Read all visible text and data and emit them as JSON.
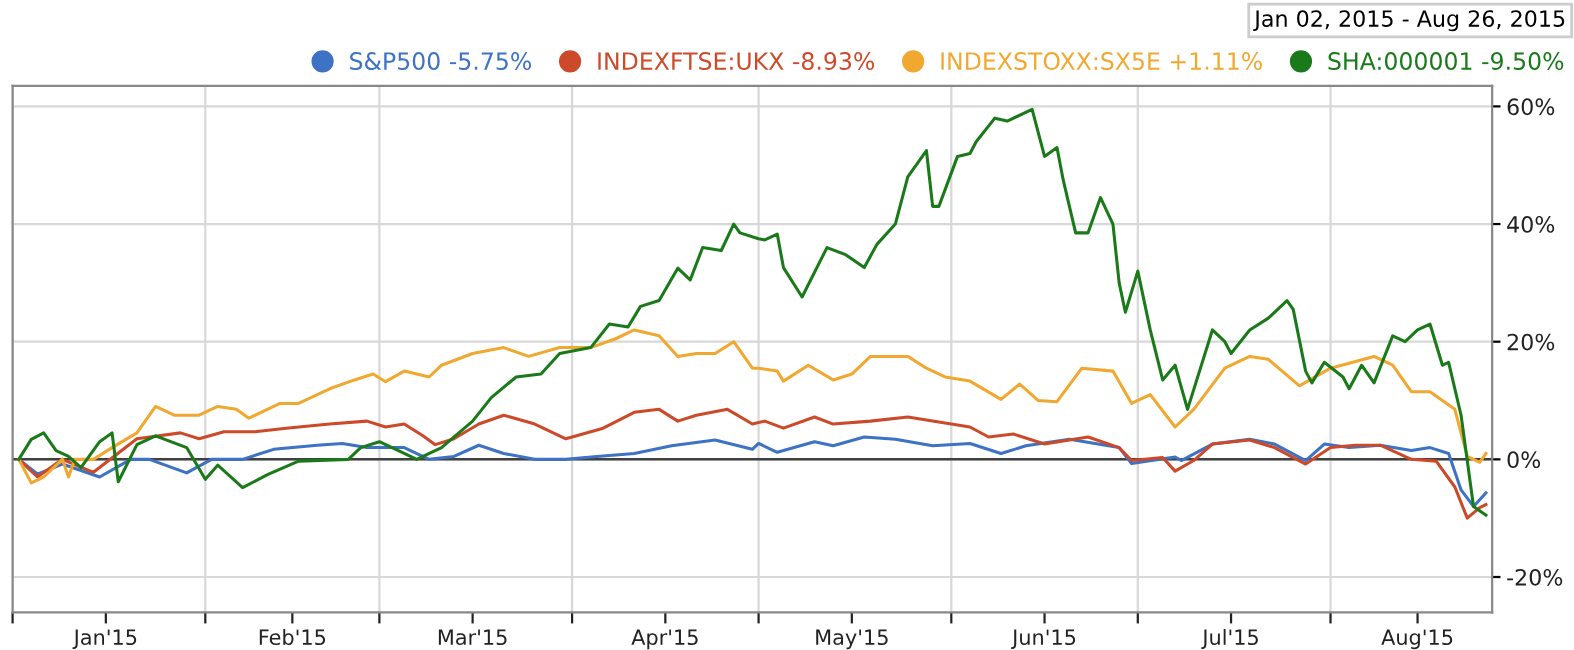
{
  "chart_data": {
    "type": "line",
    "annotations": [
      "Jan 02, 2015 - Aug 26, 2015"
    ],
    "legend": "top right",
    "grid": true,
    "marker": "none",
    "line_style": "solid",
    "xlim": [
      "2015-01-01",
      "2015-08-27"
    ],
    "xticks": [
      {
        "value": "2015-01-01",
        "label": null
      },
      {
        "value": "2015-01-16",
        "label": "Jan'15"
      },
      {
        "value": "2015-02-01",
        "label": null
      },
      {
        "value": "2015-02-15",
        "label": "Feb'15"
      },
      {
        "value": "2015-03-01",
        "label": null
      },
      {
        "value": "2015-03-16",
        "label": "Mar'15"
      },
      {
        "value": "2015-04-01",
        "label": null
      },
      {
        "value": "2015-04-16",
        "label": "Apr'15"
      },
      {
        "value": "2015-05-01",
        "label": null
      },
      {
        "value": "2015-05-16",
        "label": "May'15"
      },
      {
        "value": "2015-06-01",
        "label": null
      },
      {
        "value": "2015-06-16",
        "label": "Jun'15"
      },
      {
        "value": "2015-07-01",
        "label": null
      },
      {
        "value": "2015-07-16",
        "label": "Jul'15"
      },
      {
        "value": "2015-08-01",
        "label": null
      },
      {
        "value": "2015-08-15",
        "label": "Aug'15"
      }
    ],
    "ylim": [
      -26,
      63.5
    ],
    "yticks": [
      {
        "value": -20,
        "label": "-20%"
      },
      {
        "value": 0,
        "label": "0%"
      },
      {
        "value": 20,
        "label": "20%"
      },
      {
        "value": 40,
        "label": "40%"
      },
      {
        "value": 60,
        "label": "60%"
      }
    ],
    "ref_lines": [
      {
        "axis": "y",
        "value": 0,
        "color": "#404040"
      }
    ],
    "series": [
      {
        "name": "S&P500 -5.75%",
        "color": "#3d72c4",
        "x": [
          "2015-01-02",
          "2015-01-05",
          "2015-01-09",
          "2015-01-15",
          "2015-01-20",
          "2015-01-23",
          "2015-01-29",
          "2015-02-02",
          "2015-02-07",
          "2015-02-12",
          "2015-02-19",
          "2015-02-23",
          "2015-02-27",
          "2015-03-05",
          "2015-03-09",
          "2015-03-13",
          "2015-03-17",
          "2015-03-21",
          "2015-03-26",
          "2015-03-31",
          "2015-04-05",
          "2015-04-11",
          "2015-04-17",
          "2015-04-24",
          "2015-04-30",
          "2015-05-01",
          "2015-05-04",
          "2015-05-10",
          "2015-05-13",
          "2015-05-18",
          "2015-05-23",
          "2015-05-29",
          "2015-06-04",
          "2015-06-09",
          "2015-06-13",
          "2015-06-20",
          "2015-06-28",
          "2015-06-30",
          "2015-07-07",
          "2015-07-08",
          "2015-07-13",
          "2015-07-19",
          "2015-07-23",
          "2015-07-28",
          "2015-07-31",
          "2015-08-04",
          "2015-08-09",
          "2015-08-14",
          "2015-08-17",
          "2015-08-20",
          "2015-08-22",
          "2015-08-24",
          "2015-08-26"
        ],
        "values": [
          0,
          -2.5,
          -0.8,
          -3,
          0,
          0,
          -2.3,
          0,
          0,
          1.7,
          2.4,
          2.7,
          2,
          2,
          0,
          0.5,
          2.4,
          1,
          0,
          0,
          0.5,
          1,
          2.3,
          3.3,
          1.7,
          2.7,
          1.2,
          3,
          2.3,
          3.8,
          3.4,
          2.3,
          2.7,
          1,
          2.3,
          3.4,
          2,
          -0.7,
          0.4,
          -0.2,
          2.6,
          3.4,
          2.6,
          -0.2,
          2.6,
          2,
          2.4,
          1.5,
          2,
          1,
          -5.2,
          -8,
          -5.7
        ]
      },
      {
        "name": "INDEXFTSE:UKX -8.93%",
        "color": "#cc4a2a",
        "x": [
          "2015-01-02",
          "2015-01-05",
          "2015-01-09",
          "2015-01-14",
          "2015-01-21",
          "2015-01-28",
          "2015-01-31",
          "2015-02-04",
          "2015-02-09",
          "2015-02-14",
          "2015-02-21",
          "2015-02-27",
          "2015-03-02",
          "2015-03-05",
          "2015-03-08",
          "2015-03-10",
          "2015-03-13",
          "2015-03-17",
          "2015-03-21",
          "2015-03-26",
          "2015-03-31",
          "2015-04-06",
          "2015-04-11",
          "2015-04-15",
          "2015-04-18",
          "2015-04-21",
          "2015-04-26",
          "2015-04-30",
          "2015-05-02",
          "2015-05-05",
          "2015-05-10",
          "2015-05-13",
          "2015-05-19",
          "2015-05-25",
          "2015-05-29",
          "2015-06-04",
          "2015-06-07",
          "2015-06-11",
          "2015-06-16",
          "2015-06-23",
          "2015-06-28",
          "2015-06-30",
          "2015-07-05",
          "2015-07-07",
          "2015-07-10",
          "2015-07-13",
          "2015-07-19",
          "2015-07-23",
          "2015-07-28",
          "2015-08-01",
          "2015-08-05",
          "2015-08-09",
          "2015-08-14",
          "2015-08-18",
          "2015-08-21",
          "2015-08-23",
          "2015-08-25",
          "2015-08-26"
        ],
        "values": [
          0,
          -3,
          0,
          -2.2,
          3.5,
          4.5,
          3.5,
          4.7,
          4.7,
          5.3,
          6,
          6.5,
          5.5,
          6,
          4,
          2.5,
          3.5,
          6,
          7.5,
          6,
          3.5,
          5.3,
          8,
          8.5,
          6.5,
          7.5,
          8.5,
          6,
          6.5,
          5.3,
          7.2,
          6,
          6.5,
          7.2,
          6.5,
          5.5,
          3.8,
          4.3,
          2.6,
          3.8,
          2,
          -0.2,
          0.3,
          -2,
          -0.2,
          2.6,
          3.3,
          2,
          -0.8,
          2,
          2.4,
          2.4,
          0,
          -0.3,
          -4.7,
          -10,
          -8.2,
          -7.7
        ]
      },
      {
        "name": "INDEXSTOXX:SX5E +1.11%",
        "color": "#f0a830",
        "x": [
          "2015-01-02",
          "2015-01-04",
          "2015-01-06",
          "2015-01-09",
          "2015-01-10",
          "2015-01-11",
          "2015-01-14",
          "2015-01-17",
          "2015-01-21",
          "2015-01-24",
          "2015-01-27",
          "2015-01-31",
          "2015-02-03",
          "2015-02-06",
          "2015-02-08",
          "2015-02-13",
          "2015-02-16",
          "2015-02-21",
          "2015-02-25",
          "2015-02-28",
          "2015-03-02",
          "2015-03-05",
          "2015-03-09",
          "2015-03-11",
          "2015-03-16",
          "2015-03-21",
          "2015-03-25",
          "2015-03-30",
          "2015-04-04",
          "2015-04-08",
          "2015-04-11",
          "2015-04-15",
          "2015-04-18",
          "2015-04-21",
          "2015-04-24",
          "2015-04-27",
          "2015-04-30",
          "2015-05-01",
          "2015-05-04",
          "2015-05-05",
          "2015-05-09",
          "2015-05-13",
          "2015-05-16",
          "2015-05-19",
          "2015-05-25",
          "2015-05-28",
          "2015-05-31",
          "2015-06-04",
          "2015-06-09",
          "2015-06-12",
          "2015-06-15",
          "2015-06-18",
          "2015-06-22",
          "2015-06-27",
          "2015-06-30",
          "2015-07-03",
          "2015-07-07",
          "2015-07-10",
          "2015-07-15",
          "2015-07-19",
          "2015-07-22",
          "2015-07-27",
          "2015-08-01",
          "2015-08-08",
          "2015-08-11",
          "2015-08-14",
          "2015-08-17",
          "2015-08-21",
          "2015-08-23",
          "2015-08-25",
          "2015-08-26"
        ],
        "values": [
          0,
          -4,
          -3,
          0,
          -3,
          0,
          0,
          2,
          4.5,
          9,
          7.5,
          7.5,
          9,
          8.5,
          7,
          9.5,
          9.5,
          12,
          13.5,
          14.5,
          13.2,
          15,
          14,
          16,
          18,
          19,
          17.5,
          19,
          19,
          20.5,
          22,
          21,
          17.5,
          18,
          18,
          20,
          15.5,
          15.5,
          15,
          13.3,
          16,
          13.5,
          14.5,
          17.5,
          17.5,
          15.5,
          14,
          13.3,
          10.2,
          12.8,
          10,
          9.8,
          15.5,
          15,
          9.5,
          11,
          5.5,
          8.5,
          15.5,
          17.5,
          17,
          12.5,
          15.5,
          17.5,
          16,
          11.5,
          11.5,
          8.5,
          0.5,
          -0.5,
          1
        ]
      },
      {
        "name": "SHA:000001 -9.50%",
        "color": "#1a7a1a",
        "x": [
          "2015-01-02",
          "2015-01-04",
          "2015-01-06",
          "2015-01-08",
          "2015-01-10",
          "2015-01-12",
          "2015-01-15",
          "2015-01-17",
          "2015-01-18",
          "2015-01-21",
          "2015-01-24",
          "2015-01-29",
          "2015-02-01",
          "2015-02-03",
          "2015-02-07",
          "2015-02-11",
          "2015-02-16",
          "2015-02-24",
          "2015-02-26",
          "2015-03-01",
          "2015-03-05",
          "2015-03-07",
          "2015-03-11",
          "2015-03-16",
          "2015-03-19",
          "2015-03-23",
          "2015-03-27",
          "2015-03-30",
          "2015-04-04",
          "2015-04-07",
          "2015-04-10",
          "2015-04-12",
          "2015-04-15",
          "2015-04-18",
          "2015-04-20",
          "2015-04-22",
          "2015-04-25",
          "2015-04-27",
          "2015-04-28",
          "2015-05-01",
          "2015-05-02",
          "2015-05-04",
          "2015-05-05",
          "2015-05-08",
          "2015-05-12",
          "2015-05-15",
          "2015-05-18",
          "2015-05-20",
          "2015-05-23",
          "2015-05-25",
          "2015-05-28",
          "2015-05-29",
          "2015-05-30",
          "2015-06-02",
          "2015-06-04",
          "2015-06-05",
          "2015-06-08",
          "2015-06-10",
          "2015-06-14",
          "2015-06-16",
          "2015-06-18",
          "2015-06-19",
          "2015-06-21",
          "2015-06-23",
          "2015-06-25",
          "2015-06-27",
          "2015-06-28",
          "2015-06-29",
          "2015-07-01",
          "2015-07-03",
          "2015-07-05",
          "2015-07-07",
          "2015-07-09",
          "2015-07-13",
          "2015-07-15",
          "2015-07-16",
          "2015-07-19",
          "2015-07-22",
          "2015-07-25",
          "2015-07-26",
          "2015-07-28",
          "2015-07-29",
          "2015-07-31",
          "2015-08-03",
          "2015-08-04",
          "2015-08-06",
          "2015-08-08",
          "2015-08-11",
          "2015-08-13",
          "2015-08-15",
          "2015-08-17",
          "2015-08-19",
          "2015-08-20",
          "2015-08-22",
          "2015-08-24",
          "2015-08-26"
        ],
        "values": [
          0,
          3.4,
          4.5,
          1.5,
          0.5,
          -1.4,
          3,
          4.5,
          -3.8,
          2.5,
          4,
          2,
          -3.4,
          -1,
          -4.8,
          -2.6,
          -0.3,
          0,
          2,
          3,
          1,
          0,
          2,
          6.5,
          10.5,
          14,
          14.5,
          18,
          19,
          23,
          22.5,
          26,
          27,
          32.5,
          30.5,
          36,
          35.5,
          40,
          38.5,
          37.5,
          37.3,
          38.3,
          32.6,
          27.6,
          36,
          34.8,
          32.6,
          36.5,
          40,
          48,
          52.5,
          43,
          43,
          51.5,
          52,
          54,
          58,
          57.5,
          59.5,
          51.5,
          53,
          47.5,
          38.5,
          38.5,
          44.5,
          40,
          30,
          25,
          32,
          22,
          13.5,
          16,
          8.5,
          22,
          20,
          18,
          22,
          24,
          27,
          25.5,
          15,
          13,
          16.5,
          14,
          12,
          16,
          13,
          21,
          20,
          22,
          23,
          16,
          16.5,
          7.5,
          -8,
          -9.5
        ]
      }
    ]
  }
}
